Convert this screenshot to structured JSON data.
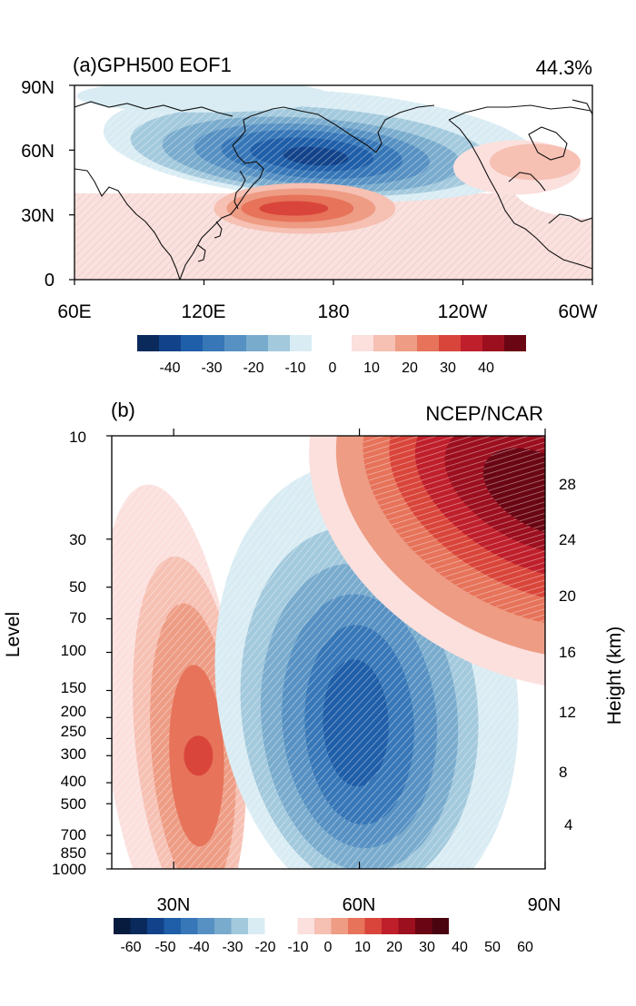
{
  "chart_data": [
    {
      "type": "heatmap",
      "panel": "(a)",
      "title": "(a)GPH500 EOF1",
      "variance_label": "44.3%",
      "x_tick_labels": [
        "60E",
        "120E",
        "180",
        "120W",
        "60W"
      ],
      "x_range_deg_east": [
        60,
        300
      ],
      "y_tick_labels": [
        "0",
        "30N",
        "60N",
        "90N"
      ],
      "y_range_deg_north": [
        0,
        90
      ],
      "features": [
        {
          "name": "negative center",
          "lon": 170,
          "lat": 58,
          "value": -40
        },
        {
          "name": "positive center",
          "lon": 165,
          "lat": 33,
          "value": 30
        },
        {
          "name": "weak positive",
          "lon": 265,
          "lat": 52,
          "value": 10
        },
        {
          "name": "weak positive",
          "lon": 90,
          "lat": 20,
          "value": 10
        }
      ],
      "colorbar": {
        "labels": [
          "-40",
          "-30",
          "-20",
          "-10",
          "0",
          "10",
          "20",
          "30",
          "40"
        ],
        "neg_colors": [
          "#0b2a5c",
          "#12438a",
          "#1f5ea8",
          "#3777b8",
          "#5791c3",
          "#79abcd",
          "#a3c9dd",
          "#d9ecf3"
        ],
        "pos_colors": [
          "#fbe0dd",
          "#f6c0b3",
          "#ee9c84",
          "#e6735a",
          "#d9453a",
          "#bf1f2b",
          "#9c0f1f",
          "#6a0613"
        ]
      }
    },
    {
      "type": "heatmap",
      "panel": "(b)",
      "title": "(b)",
      "dataset_label": "NCEP/NCAR",
      "xlabel": "",
      "ylabel": "Level",
      "y2label": "Height (km)",
      "x_tick_labels": [
        "30N",
        "60N",
        "90N"
      ],
      "x_range_deg_north": [
        20,
        90
      ],
      "y_tick_labels": [
        "10",
        "30",
        "50",
        "70",
        "100",
        "150",
        "200",
        "250",
        "300",
        "400",
        "500",
        "700",
        "850",
        "1000"
      ],
      "y_range_hpa": [
        1000,
        10
      ],
      "y2_tick_labels": [
        "28",
        "24",
        "20",
        "16",
        "12",
        "8",
        "4"
      ],
      "features": [
        {
          "name": "positive center",
          "lat": 34,
          "level_hpa": 300,
          "value": 30
        },
        {
          "name": "negative center",
          "lat": 60,
          "level_hpa": 200,
          "value": -50
        },
        {
          "name": "strong positive",
          "lat": 88,
          "level_hpa": 20,
          "value": 60
        }
      ],
      "colorbar": {
        "labels": [
          "-60",
          "-50",
          "-40",
          "-30",
          "-20",
          "-10",
          "0",
          "10",
          "20",
          "30",
          "40",
          "50",
          "60"
        ],
        "neg_colors": [
          "#0b2a5c",
          "#12438a",
          "#1f5ea8",
          "#3777b8",
          "#5791c3",
          "#79abcd",
          "#a3c9dd",
          "#d9ecf3"
        ],
        "pos_colors": [
          "#fbe0dd",
          "#f6c0b3",
          "#ee9c84",
          "#e6735a",
          "#d9453a",
          "#bf1f2b",
          "#9c0f1f",
          "#6a0613"
        ]
      }
    }
  ]
}
